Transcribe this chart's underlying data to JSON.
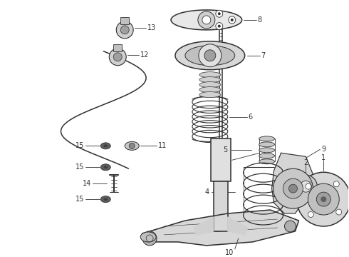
{
  "bg_color": "#ffffff",
  "lc": "#303030",
  "fig_width": 4.9,
  "fig_height": 3.6,
  "dpi": 100,
  "xlim": [
    0,
    490
  ],
  "ylim": [
    0,
    360
  ]
}
